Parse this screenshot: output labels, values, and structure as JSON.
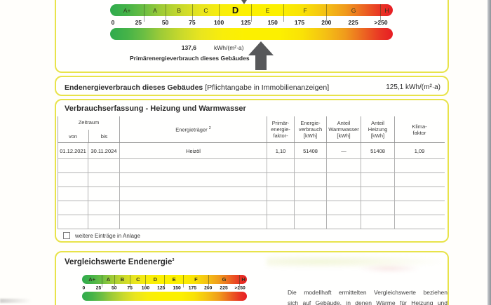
{
  "colors": {
    "box_border": "#e8e34a",
    "arrow_gray": "#57585a",
    "scale_green": "#2fab4d",
    "scale_yellow": "#fcf000",
    "scale_red": "#e71d24",
    "table_line": "#a5a5a5"
  },
  "energy_scale": {
    "classes": [
      "A+",
      "A",
      "B",
      "C",
      "D",
      "E",
      "F",
      "G",
      "H"
    ],
    "current_class": "D",
    "ticks": [
      "0",
      "25",
      "50",
      "75",
      "100",
      "125",
      "150",
      "175",
      "200",
      "225",
      ">250"
    ],
    "primary_value": "137,6",
    "primary_unit": "kWh/(m²·a)",
    "primary_label": "Primärenergieverbrauch dieses Gebäudes"
  },
  "endenergie": {
    "title": "Endenergieverbrauch dieses Gebäudes",
    "note": "[Pflichtangabe in Immobilienanzeigen]",
    "value": "125,1 kWh/(m²·a)"
  },
  "consumption": {
    "title": "Verbrauchserfassung - Heizung und Warmwasser",
    "headers": {
      "zeitraum": "Zeitraum",
      "von": "von",
      "bis": "bis",
      "energietraeger": "Energieträger",
      "energietraeger_sup": "2",
      "pef": "Primär-\nenergie-\nfaktor-",
      "verbrauch": "Energie-\nverbrauch\n[kWh]",
      "warmwasser": "Anteil\nWarmwasser\n[kWh]",
      "heizung": "Anteil\nHeizung\n[kWh]",
      "klima": "Klima-\nfaktor"
    },
    "rows": [
      [
        "01.12.2021",
        "30.11.2024",
        "Heizöl",
        "1,10",
        "51408",
        "—",
        "51408",
        "1,09"
      ]
    ],
    "empty_rows": 5,
    "checkbox_label": "weitere Einträge in Anlage"
  },
  "comparison": {
    "title": "Vergleichswerte Endenergie",
    "title_sup": "3",
    "classes": [
      "A+",
      "A",
      "B",
      "C",
      "D",
      "E",
      "F",
      "G",
      "H"
    ],
    "ticks": [
      "0",
      "25",
      "50",
      "75",
      "100",
      "125",
      "150",
      "175",
      "200",
      "225",
      ">250"
    ],
    "text_lines": [
      "Die modellhaft ermittelten Vergleichswerte beziehen",
      "sich auf Gebäude, in denen Wärme für Heizung und"
    ]
  }
}
